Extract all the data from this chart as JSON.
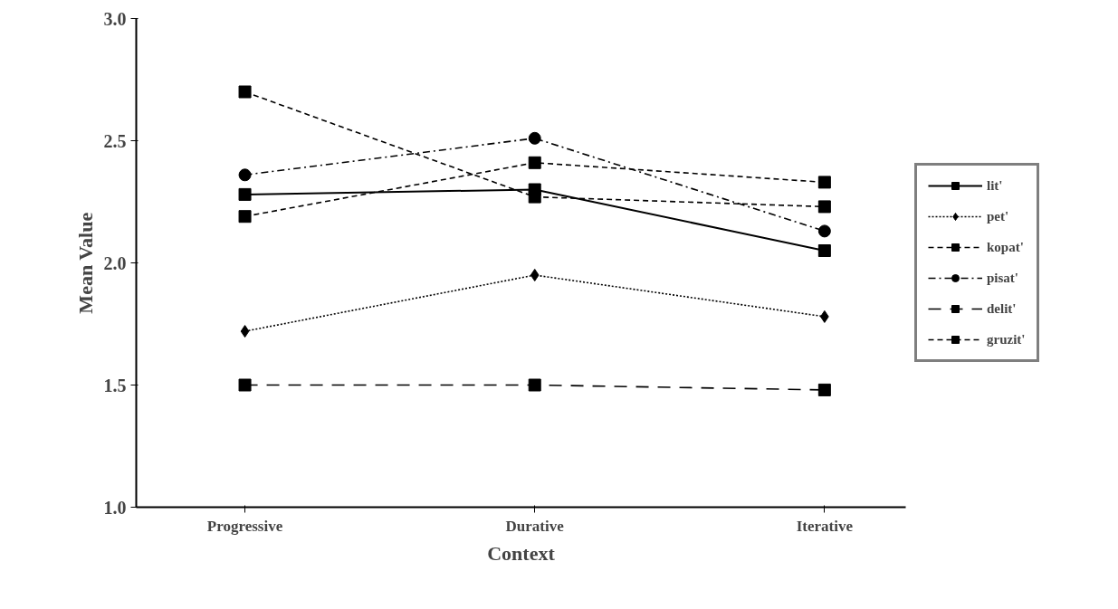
{
  "chart_data": {
    "type": "line",
    "xlabel": "Context",
    "ylabel": "Mean Value",
    "categories": [
      "Progressive",
      "Durative",
      "Iterative"
    ],
    "ylim": [
      1.0,
      3.0
    ],
    "yticks": [
      {
        "value": 1.0,
        "label": "1.0"
      },
      {
        "value": 1.5,
        "label": "1.5"
      },
      {
        "value": 2.0,
        "label": "2.0"
      },
      {
        "value": 2.5,
        "label": "2.5"
      },
      {
        "value": 3.0,
        "label": "3.0"
      }
    ],
    "grid": false,
    "legend": "right",
    "series": [
      {
        "name": "lit'",
        "color": "#000000",
        "values": [
          2.28,
          2.3,
          2.05
        ],
        "marker": "square",
        "line_style": "solid"
      },
      {
        "name": "pet'",
        "color": "#000000",
        "values": [
          1.72,
          1.95,
          1.78
        ],
        "marker": "diamond",
        "line_style": "dotted"
      },
      {
        "name": "kopat'",
        "color": "#000000",
        "values": [
          2.19,
          2.41,
          2.33
        ],
        "marker": "square",
        "line_style": "dashed"
      },
      {
        "name": "pisat'",
        "color": "#000000",
        "values": [
          2.36,
          2.51,
          2.13
        ],
        "marker": "circle",
        "line_style": "dashdot"
      },
      {
        "name": "delit'",
        "color": "#000000",
        "values": [
          1.5,
          1.5,
          1.48
        ],
        "marker": "square",
        "line_style": "longdash"
      },
      {
        "name": "gruzit'",
        "color": "#000000",
        "values": [
          2.7,
          2.27,
          2.23
        ],
        "marker": "square",
        "line_style": "dashed"
      }
    ]
  }
}
